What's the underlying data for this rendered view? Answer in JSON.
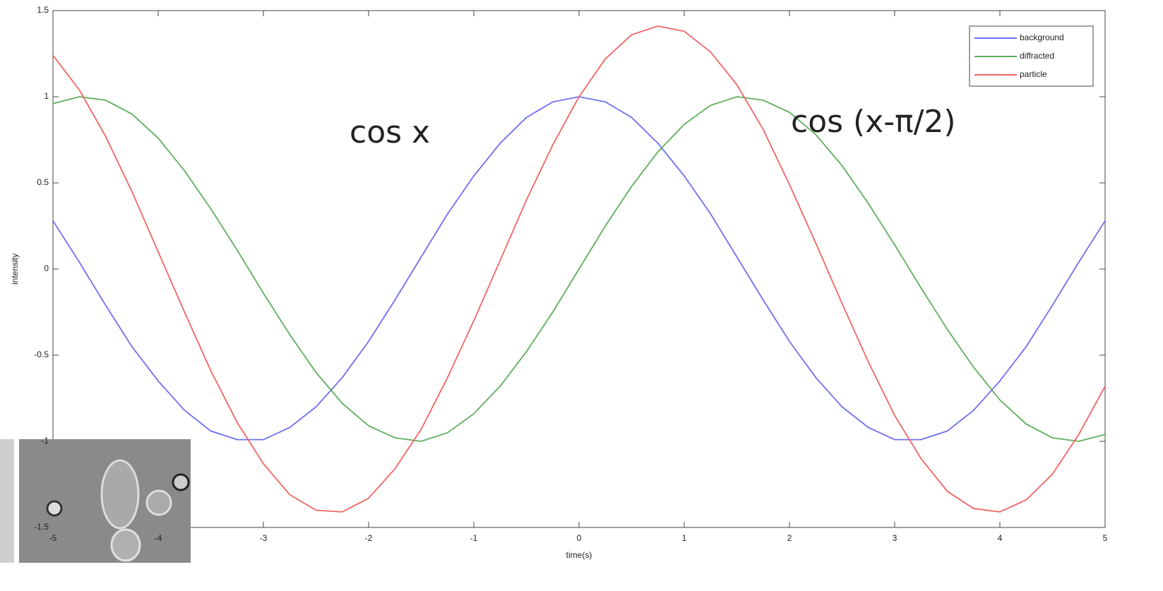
{
  "chart_data": {
    "type": "line",
    "xlabel": "time(s)",
    "ylabel": "intensity",
    "xlim": [
      -5,
      5
    ],
    "ylim": [
      -1.5,
      1.5
    ],
    "xticks": [
      -5,
      -4,
      -3,
      -2,
      -1,
      0,
      1,
      2,
      3,
      4,
      5
    ],
    "yticks": [
      -1.5,
      -1,
      -0.5,
      0,
      0.5,
      1,
      1.5
    ],
    "legend": "upper right",
    "x": [
      -5,
      -4.75,
      -4.5,
      -4.25,
      -4,
      -3.75,
      -3.5,
      -3.25,
      -3,
      -2.75,
      -2.5,
      -2.25,
      -2,
      -1.75,
      -1.5,
      -1.25,
      -1,
      -0.75,
      -0.5,
      -0.25,
      0,
      0.25,
      0.5,
      0.75,
      1,
      1.25,
      1.5,
      1.75,
      2,
      2.25,
      2.5,
      2.75,
      3,
      3.25,
      3.5,
      3.75,
      4,
      4.25,
      4.5,
      4.75,
      5
    ],
    "series": [
      {
        "name": "background",
        "color": "#6f6ff2",
        "values": [
          0.28,
          0.04,
          -0.21,
          -0.45,
          -0.65,
          -0.82,
          -0.94,
          -0.99,
          -0.99,
          -0.92,
          -0.8,
          -0.63,
          -0.42,
          -0.18,
          0.07,
          0.32,
          0.54,
          0.73,
          0.88,
          0.97,
          1,
          0.97,
          0.88,
          0.73,
          0.54,
          0.32,
          0.07,
          -0.18,
          -0.42,
          -0.63,
          -0.8,
          -0.92,
          -0.99,
          -0.99,
          -0.94,
          -0.82,
          -0.65,
          -0.45,
          -0.21,
          0.04,
          0.28
        ]
      },
      {
        "name": "diffracted",
        "color": "#5fae5f",
        "values": [
          0.96,
          1.0,
          0.98,
          0.9,
          0.76,
          0.57,
          0.35,
          0.11,
          -0.14,
          -0.38,
          -0.6,
          -0.78,
          -0.91,
          -0.98,
          -1.0,
          -0.95,
          -0.84,
          -0.68,
          -0.48,
          -0.25,
          0,
          0.25,
          0.48,
          0.68,
          0.84,
          0.95,
          1.0,
          0.98,
          0.91,
          0.78,
          0.6,
          0.38,
          0.14,
          -0.11,
          -0.35,
          -0.57,
          -0.76,
          -0.9,
          -0.98,
          -1.0,
          -0.96
        ]
      },
      {
        "name": "particle",
        "color": "#f26464",
        "values": [
          1.24,
          1.04,
          0.77,
          0.45,
          0.1,
          -0.25,
          -0.59,
          -0.89,
          -1.13,
          -1.31,
          -1.4,
          -1.41,
          -1.33,
          -1.16,
          -0.93,
          -0.63,
          -0.3,
          0.05,
          0.4,
          0.72,
          1,
          1.22,
          1.36,
          1.41,
          1.38,
          1.26,
          1.07,
          0.81,
          0.49,
          0.15,
          -0.2,
          -0.54,
          -0.85,
          -1.1,
          -1.29,
          -1.39,
          -1.41,
          -1.34,
          -1.19,
          -0.96,
          -0.68
        ]
      }
    ],
    "annotations": [
      {
        "text": "cos x",
        "color": "#1b6db3"
      },
      {
        "text": "cos (x-π/2)",
        "color": "#18a84c"
      }
    ]
  }
}
